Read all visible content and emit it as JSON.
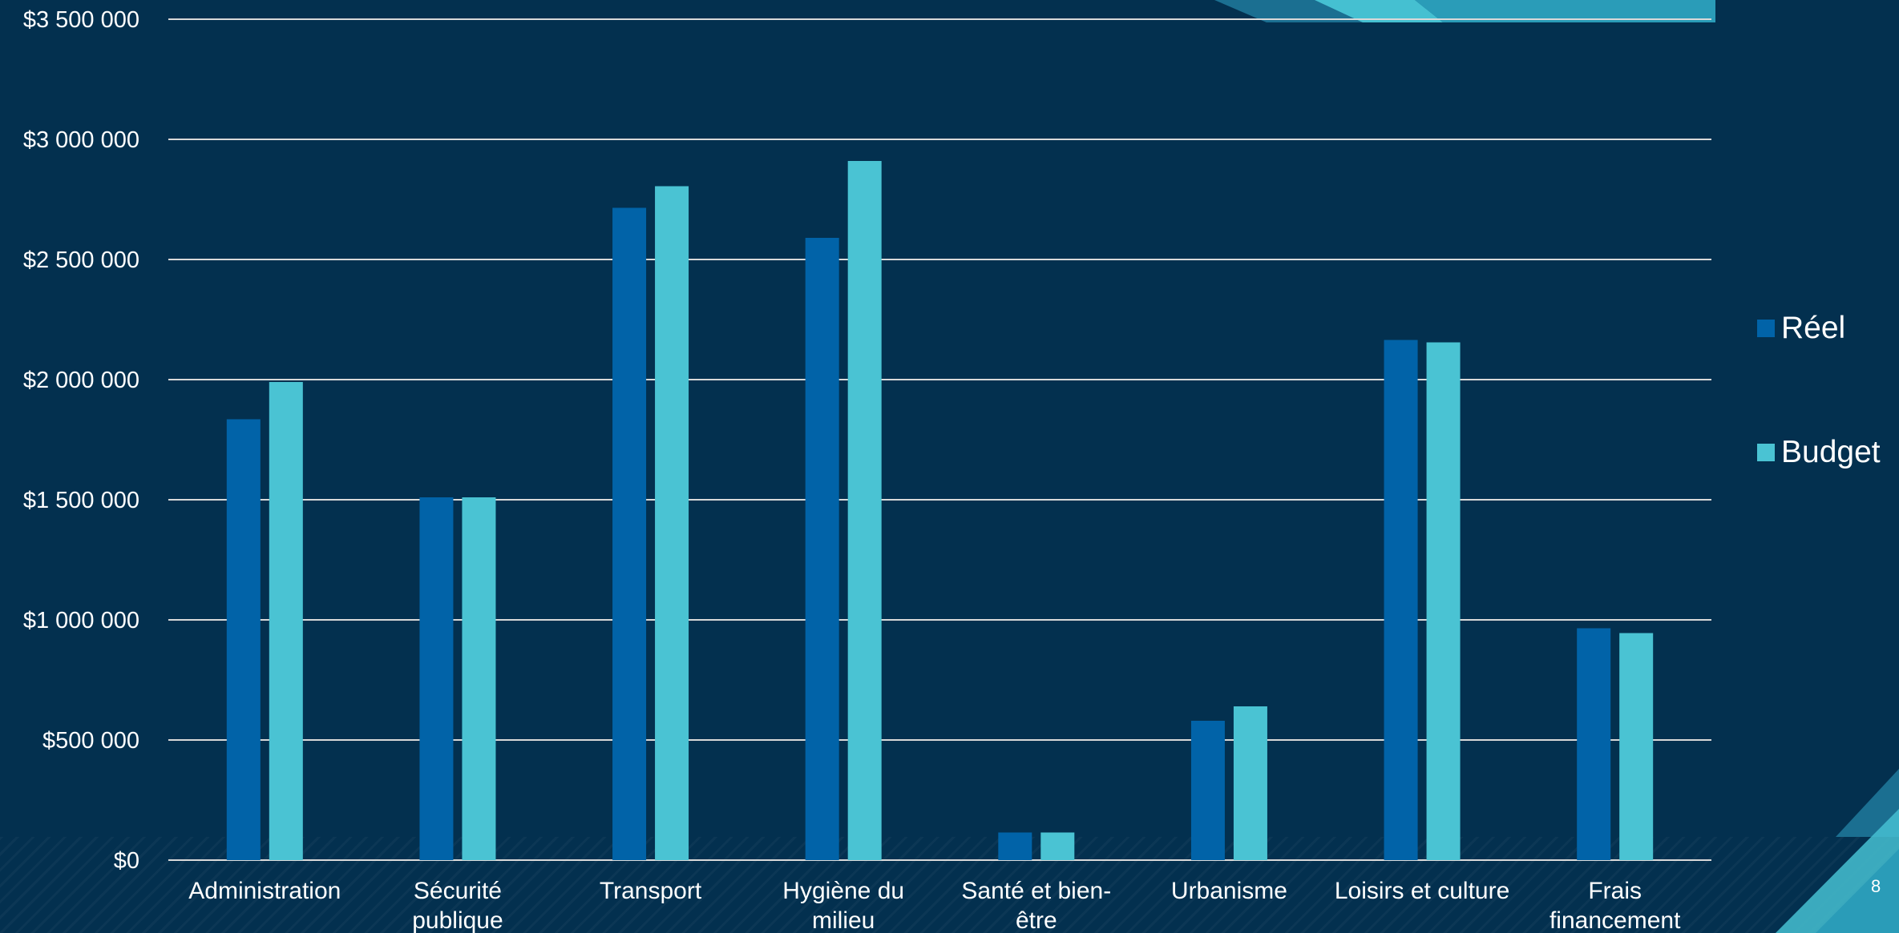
{
  "page_number": "8",
  "colors": {
    "background": "#03304f",
    "gridline": "#d9d9d9",
    "accent_teal": "#3ebcd0"
  },
  "chart_data": {
    "type": "bar",
    "categories": [
      "Administration",
      "Sécurité publique",
      "Transport",
      "Hygiène du milieu",
      "Santé et bien-être",
      "Urbanisme",
      "Loisirs et culture",
      "Frais financement"
    ],
    "category_lines": [
      [
        "Administration"
      ],
      [
        "Sécurité",
        "publique"
      ],
      [
        "Transport"
      ],
      [
        "Hygiène du",
        "milieu"
      ],
      [
        "Santé et bien-",
        "être"
      ],
      [
        "Urbanisme"
      ],
      [
        "Loisirs et culture"
      ],
      [
        "Frais",
        "financement"
      ]
    ],
    "series": [
      {
        "name": "Réel",
        "color": "#0163a8",
        "values": [
          1835000,
          1510000,
          2715000,
          2590000,
          115000,
          580000,
          2165000,
          965000
        ]
      },
      {
        "name": "Budget",
        "color": "#4ac3d3",
        "values": [
          1990000,
          1510000,
          2805000,
          2910000,
          115000,
          640000,
          2155000,
          945000
        ]
      }
    ],
    "ylim": [
      0,
      3500000
    ],
    "yticks": [
      0,
      500000,
      1000000,
      1500000,
      2000000,
      2500000,
      3000000,
      3500000
    ],
    "ytick_labels": [
      "$0",
      "$500 000",
      "$1 000 000",
      "$1 500 000",
      "$2 000 000",
      "$2 500 000",
      "$3 000 000",
      "$3 500 000"
    ],
    "grid": true,
    "legend_position": "right",
    "title": "",
    "xlabel": "",
    "ylabel": ""
  }
}
